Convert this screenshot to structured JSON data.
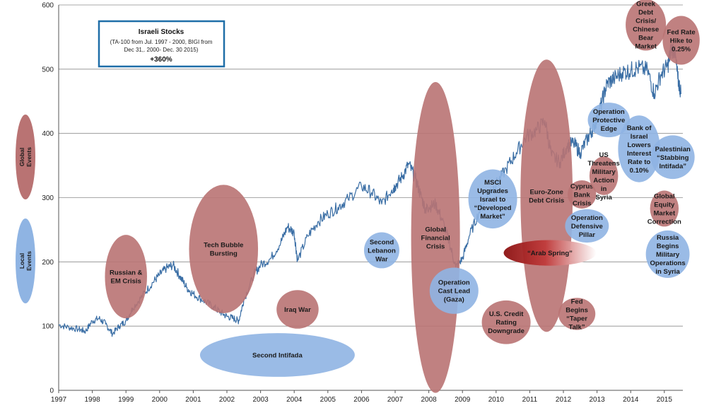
{
  "chart_data": {
    "type": "line",
    "ylim": [
      0,
      600
    ],
    "xlim": [
      1997,
      2015.55
    ],
    "grid": true,
    "y_ticks": [
      0,
      100,
      200,
      300,
      400,
      500,
      600
    ],
    "x_ticks": [
      1997,
      1998,
      1999,
      2000,
      2001,
      2002,
      2003,
      2004,
      2005,
      2006,
      2007,
      2008,
      2009,
      2010,
      2011,
      2012,
      2013,
      2014,
      2015
    ],
    "line_color": "#3a6ea5",
    "global_color": "#b97373",
    "local_color": "#8fb4e3",
    "title_box": {
      "title": "Israeli Stocks",
      "subtitle": "(TA-100 from Jul. 1997 - 2000, BIGI from Dec 31,. 2000- Dec. 30 2015)",
      "highlight": "+360%"
    },
    "legend": [
      {
        "label": "Global Events",
        "kind": "global"
      },
      {
        "label": "Local Events",
        "kind": "local"
      }
    ],
    "series": [
      {
        "points": [
          [
            1997.0,
            102
          ],
          [
            1997.3,
            98
          ],
          [
            1997.6,
            95
          ],
          [
            1997.8,
            92
          ],
          [
            1998.0,
            108
          ],
          [
            1998.2,
            112
          ],
          [
            1998.4,
            103
          ],
          [
            1998.6,
            88
          ],
          [
            1998.8,
            100
          ],
          [
            1999.0,
            108
          ],
          [
            1999.2,
            128
          ],
          [
            1999.5,
            148
          ],
          [
            1999.8,
            168
          ],
          [
            2000.0,
            180
          ],
          [
            2000.2,
            190
          ],
          [
            2000.4,
            195
          ],
          [
            2000.6,
            178
          ],
          [
            2000.8,
            160
          ],
          [
            2001.0,
            150
          ],
          [
            2001.3,
            140
          ],
          [
            2001.6,
            130
          ],
          [
            2001.8,
            122
          ],
          [
            2002.0,
            115
          ],
          [
            2002.2,
            112
          ],
          [
            2002.35,
            108
          ],
          [
            2002.5,
            140
          ],
          [
            2002.8,
            180
          ],
          [
            2003.0,
            195
          ],
          [
            2003.3,
            205
          ],
          [
            2003.6,
            230
          ],
          [
            2003.8,
            255
          ],
          [
            2004.0,
            245
          ],
          [
            2004.1,
            202
          ],
          [
            2004.4,
            240
          ],
          [
            2004.7,
            262
          ],
          [
            2005.0,
            275
          ],
          [
            2005.3,
            285
          ],
          [
            2005.6,
            298
          ],
          [
            2006.0,
            318
          ],
          [
            2006.3,
            308
          ],
          [
            2006.6,
            290
          ],
          [
            2006.9,
            312
          ],
          [
            2007.0,
            318
          ],
          [
            2007.2,
            332
          ],
          [
            2007.4,
            352
          ],
          [
            2007.6,
            330
          ],
          [
            2007.75,
            305
          ],
          [
            2007.9,
            282
          ],
          [
            2008.0,
            285
          ],
          [
            2008.2,
            290
          ],
          [
            2008.4,
            265
          ],
          [
            2008.6,
            232
          ],
          [
            2008.8,
            192
          ],
          [
            2009.0,
            205
          ],
          [
            2009.2,
            240
          ],
          [
            2009.5,
            278
          ],
          [
            2009.8,
            308
          ],
          [
            2010.0,
            320
          ],
          [
            2010.3,
            345
          ],
          [
            2010.6,
            370
          ],
          [
            2010.9,
            395
          ],
          [
            2011.2,
            405
          ],
          [
            2011.45,
            420
          ],
          [
            2011.65,
            365
          ],
          [
            2011.9,
            355
          ],
          [
            2012.1,
            380
          ],
          [
            2012.3,
            385
          ],
          [
            2012.5,
            370
          ],
          [
            2012.7,
            390
          ],
          [
            2012.85,
            405
          ],
          [
            2013.0,
            422
          ],
          [
            2013.15,
            450
          ],
          [
            2013.3,
            478
          ],
          [
            2013.5,
            485
          ],
          [
            2013.75,
            495
          ],
          [
            2014.0,
            498
          ],
          [
            2014.2,
            502
          ],
          [
            2014.5,
            498
          ],
          [
            2014.7,
            462
          ],
          [
            2014.9,
            492
          ],
          [
            2015.1,
            505
          ],
          [
            2015.2,
            530
          ],
          [
            2015.3,
            532
          ],
          [
            2015.4,
            485
          ],
          [
            2015.5,
            462
          ]
        ]
      }
    ],
    "events": [
      {
        "label": "Russian & EM Crisis",
        "kind": "global",
        "x": 1999.0,
        "y": 177,
        "rx": 1.25,
        "ry": 65
      },
      {
        "label": "Tech Bubble Bursting",
        "kind": "global",
        "x": 2001.9,
        "y": 220,
        "rx": 2.05,
        "ry": 100
      },
      {
        "label": "Iraq War",
        "kind": "global",
        "x": 2004.1,
        "y": 126,
        "rx": 1.25,
        "ry": 30
      },
      {
        "label": "Second Intifada",
        "kind": "local",
        "x": 2003.5,
        "y": 55,
        "rx": 4.6,
        "ry": 34
      },
      {
        "label": "Second Lebanon War",
        "kind": "local",
        "x": 2006.6,
        "y": 218,
        "rx": 1.05,
        "ry": 28
      },
      {
        "label": "Global Financial Crisis",
        "kind": "global",
        "x": 2008.2,
        "y": 238,
        "rx": 1.45,
        "ry": 242
      },
      {
        "label": "Operation Cast Lead (Gaza)",
        "kind": "local",
        "x": 2008.75,
        "y": 155,
        "rx": 1.45,
        "ry": 36
      },
      {
        "label": "MSCI Upgrades Israel to “Developed Market”",
        "kind": "local",
        "x": 2009.9,
        "y": 298,
        "rx": 1.45,
        "ry": 46
      },
      {
        "label": "U.S. Credit Rating Downgrade",
        "kind": "global",
        "x": 2010.3,
        "y": 106,
        "rx": 1.45,
        "ry": 34
      },
      {
        "label": "Euro-Zone Debt Crisis",
        "kind": "global",
        "x": 2011.5,
        "y": 303,
        "rx": 1.55,
        "ry": 212
      },
      {
        "label": "“Arab Spring”",
        "kind": "gradient",
        "x": 2011.6,
        "y": 214,
        "rx": 2.75,
        "ry": 20
      },
      {
        "label": "Fed Begins “Taper Talk”",
        "kind": "global",
        "x": 2012.4,
        "y": 119,
        "rx": 1.1,
        "ry": 25
      },
      {
        "label": "Operation Defensive Pillar",
        "kind": "local",
        "x": 2012.7,
        "y": 256,
        "rx": 1.3,
        "ry": 26
      },
      {
        "label": "Cyprus Bank Crisis",
        "kind": "global",
        "x": 2012.55,
        "y": 305,
        "rx": 0.85,
        "ry": 22
      },
      {
        "label": "US Threatens Military Action in Syria",
        "kind": "global",
        "x": 2013.2,
        "y": 334,
        "rx": 0.85,
        "ry": 30
      },
      {
        "label": "Operation Protective Edge",
        "kind": "local",
        "x": 2013.35,
        "y": 421,
        "rx": 1.25,
        "ry": 27
      },
      {
        "label": "Bank of Israel Lowers Interest Rate to 0.10%",
        "kind": "local",
        "x": 2014.25,
        "y": 376,
        "rx": 1.25,
        "ry": 52
      },
      {
        "label": "Palestinian “Stabbing Intifada”",
        "kind": "local",
        "x": 2015.25,
        "y": 363,
        "rx": 1.3,
        "ry": 34
      },
      {
        "label": "Greek Debt Crisis/ Chinese Bear Market",
        "kind": "global",
        "x": 2014.45,
        "y": 569,
        "rx": 1.2,
        "ry": 40
      },
      {
        "label": "Fed Rate Hike to 0.25%",
        "kind": "global",
        "x": 2015.5,
        "y": 545,
        "rx": 1.1,
        "ry": 38
      },
      {
        "label": "Global Equity Market Correction",
        "kind": "global",
        "x": 2015.0,
        "y": 283,
        "rx": 0.85,
        "ry": 28
      },
      {
        "label": "Russia Begins Military Operations in Syria",
        "kind": "local",
        "x": 2015.1,
        "y": 212,
        "rx": 1.3,
        "ry": 37
      }
    ]
  }
}
